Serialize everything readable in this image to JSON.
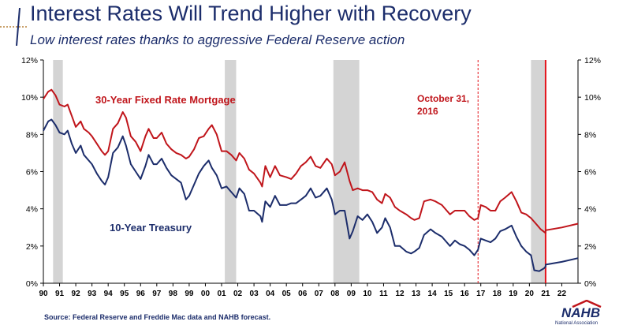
{
  "header": {
    "title": "Interest Rates Will Trend Higher with Recovery",
    "subtitle": "Low interest rates thanks to aggressive Federal Reserve action"
  },
  "footer": {
    "source": "Source: Federal Reserve and Freddie Mac data and NAHB forecast.",
    "logo": "NAHB",
    "logo_sub": "National Association"
  },
  "colors": {
    "mortgage": "#c0151b",
    "treasury": "#1c2d6b",
    "recession": "#d4d4d4",
    "marker": "#e3131b"
  },
  "chart_data": {
    "type": "line",
    "x_tick_labels": [
      "90",
      "91",
      "92",
      "93",
      "94",
      "95",
      "96",
      "97",
      "98",
      "99",
      "00",
      "01",
      "02",
      "03",
      "04",
      "05",
      "06",
      "07",
      "08",
      "09",
      "10",
      "11",
      "12",
      "13",
      "14",
      "15",
      "16",
      "17",
      "18",
      "19",
      "20",
      "21",
      "22"
    ],
    "y_tick_labels": [
      "0%",
      "2%",
      "4%",
      "6%",
      "8%",
      "10%",
      "12%"
    ],
    "ylim": [
      0,
      12
    ],
    "xlim": [
      1990,
      2023
    ],
    "recessions": [
      [
        1990.6,
        1991.2
      ],
      [
        2001.2,
        2001.9
      ],
      [
        2007.9,
        2009.5
      ],
      [
        2020.1,
        2021.0
      ]
    ],
    "annotation": {
      "text_lines": [
        "October 31,",
        "2016"
      ],
      "x": 2016.83
    },
    "forecast_start": 2021.0,
    "series": [
      {
        "name": "30-Year Fixed Rate Mortgage",
        "points": [
          [
            1990.0,
            9.9
          ],
          [
            1990.3,
            10.3
          ],
          [
            1990.5,
            10.4
          ],
          [
            1990.75,
            10.1
          ],
          [
            1991.0,
            9.6
          ],
          [
            1991.3,
            9.5
          ],
          [
            1991.5,
            9.6
          ],
          [
            1991.75,
            9.0
          ],
          [
            1992.0,
            8.4
          ],
          [
            1992.3,
            8.7
          ],
          [
            1992.5,
            8.3
          ],
          [
            1992.8,
            8.1
          ],
          [
            1993.0,
            7.9
          ],
          [
            1993.3,
            7.5
          ],
          [
            1993.6,
            7.1
          ],
          [
            1993.8,
            6.9
          ],
          [
            1994.0,
            7.1
          ],
          [
            1994.3,
            8.3
          ],
          [
            1994.6,
            8.6
          ],
          [
            1994.9,
            9.2
          ],
          [
            1995.1,
            8.9
          ],
          [
            1995.4,
            7.9
          ],
          [
            1995.7,
            7.6
          ],
          [
            1996.0,
            7.1
          ],
          [
            1996.3,
            7.9
          ],
          [
            1996.5,
            8.3
          ],
          [
            1996.8,
            7.8
          ],
          [
            1997.0,
            7.8
          ],
          [
            1997.3,
            8.1
          ],
          [
            1997.6,
            7.5
          ],
          [
            1997.9,
            7.2
          ],
          [
            1998.2,
            7.0
          ],
          [
            1998.5,
            6.9
          ],
          [
            1998.8,
            6.7
          ],
          [
            1999.0,
            6.8
          ],
          [
            1999.3,
            7.2
          ],
          [
            1999.6,
            7.8
          ],
          [
            1999.9,
            7.9
          ],
          [
            2000.2,
            8.3
          ],
          [
            2000.4,
            8.5
          ],
          [
            2000.7,
            8.0
          ],
          [
            2001.0,
            7.1
          ],
          [
            2001.3,
            7.1
          ],
          [
            2001.6,
            6.9
          ],
          [
            2001.9,
            6.6
          ],
          [
            2002.1,
            7.0
          ],
          [
            2002.4,
            6.7
          ],
          [
            2002.7,
            6.1
          ],
          [
            2003.0,
            5.9
          ],
          [
            2003.4,
            5.4
          ],
          [
            2003.5,
            5.2
          ],
          [
            2003.7,
            6.3
          ],
          [
            2004.0,
            5.7
          ],
          [
            2004.3,
            6.3
          ],
          [
            2004.6,
            5.8
          ],
          [
            2005.0,
            5.7
          ],
          [
            2005.3,
            5.6
          ],
          [
            2005.6,
            5.9
          ],
          [
            2005.9,
            6.3
          ],
          [
            2006.2,
            6.5
          ],
          [
            2006.5,
            6.8
          ],
          [
            2006.8,
            6.3
          ],
          [
            2007.1,
            6.2
          ],
          [
            2007.5,
            6.7
          ],
          [
            2007.8,
            6.4
          ],
          [
            2008.0,
            5.8
          ],
          [
            2008.3,
            6.0
          ],
          [
            2008.6,
            6.5
          ],
          [
            2008.9,
            5.5
          ],
          [
            2009.1,
            5.0
          ],
          [
            2009.4,
            5.1
          ],
          [
            2009.7,
            5.0
          ],
          [
            2010.0,
            5.0
          ],
          [
            2010.3,
            4.9
          ],
          [
            2010.6,
            4.5
          ],
          [
            2010.9,
            4.3
          ],
          [
            2011.1,
            4.8
          ],
          [
            2011.4,
            4.6
          ],
          [
            2011.7,
            4.1
          ],
          [
            2012.0,
            3.9
          ],
          [
            2012.4,
            3.7
          ],
          [
            2012.7,
            3.5
          ],
          [
            2012.9,
            3.4
          ],
          [
            2013.2,
            3.5
          ],
          [
            2013.5,
            4.4
          ],
          [
            2013.9,
            4.5
          ],
          [
            2014.2,
            4.4
          ],
          [
            2014.6,
            4.2
          ],
          [
            2014.9,
            3.9
          ],
          [
            2015.1,
            3.7
          ],
          [
            2015.4,
            3.9
          ],
          [
            2015.7,
            3.9
          ],
          [
            2016.0,
            3.9
          ],
          [
            2016.3,
            3.6
          ],
          [
            2016.6,
            3.4
          ],
          [
            2016.83,
            3.5
          ],
          [
            2017.0,
            4.2
          ],
          [
            2017.3,
            4.1
          ],
          [
            2017.6,
            3.9
          ],
          [
            2017.9,
            3.9
          ],
          [
            2018.2,
            4.4
          ],
          [
            2018.5,
            4.6
          ],
          [
            2018.9,
            4.9
          ],
          [
            2019.2,
            4.4
          ],
          [
            2019.5,
            3.8
          ],
          [
            2019.8,
            3.7
          ],
          [
            2020.1,
            3.5
          ],
          [
            2020.4,
            3.2
          ],
          [
            2020.7,
            2.9
          ],
          [
            2021.0,
            2.7
          ],
          [
            2021.01,
            2.85
          ],
          [
            2022.0,
            3.0
          ],
          [
            2023.0,
            3.2
          ]
        ]
      },
      {
        "name": "10-Year Treasury",
        "points": [
          [
            1990.0,
            8.2
          ],
          [
            1990.3,
            8.7
          ],
          [
            1990.5,
            8.8
          ],
          [
            1990.75,
            8.5
          ],
          [
            1991.0,
            8.1
          ],
          [
            1991.3,
            8.0
          ],
          [
            1991.5,
            8.2
          ],
          [
            1991.75,
            7.5
          ],
          [
            1992.0,
            7.0
          ],
          [
            1992.3,
            7.4
          ],
          [
            1992.5,
            6.9
          ],
          [
            1992.8,
            6.6
          ],
          [
            1993.0,
            6.4
          ],
          [
            1993.3,
            5.9
          ],
          [
            1993.6,
            5.5
          ],
          [
            1993.8,
            5.3
          ],
          [
            1994.0,
            5.7
          ],
          [
            1994.3,
            7.0
          ],
          [
            1994.6,
            7.3
          ],
          [
            1994.9,
            7.9
          ],
          [
            1995.1,
            7.4
          ],
          [
            1995.4,
            6.4
          ],
          [
            1995.7,
            6.0
          ],
          [
            1996.0,
            5.6
          ],
          [
            1996.3,
            6.3
          ],
          [
            1996.5,
            6.9
          ],
          [
            1996.8,
            6.4
          ],
          [
            1997.0,
            6.4
          ],
          [
            1997.3,
            6.7
          ],
          [
            1997.6,
            6.2
          ],
          [
            1997.9,
            5.8
          ],
          [
            1998.2,
            5.6
          ],
          [
            1998.5,
            5.4
          ],
          [
            1998.8,
            4.5
          ],
          [
            1999.0,
            4.7
          ],
          [
            1999.3,
            5.3
          ],
          [
            1999.6,
            5.9
          ],
          [
            1999.9,
            6.3
          ],
          [
            2000.2,
            6.6
          ],
          [
            2000.4,
            6.2
          ],
          [
            2000.7,
            5.8
          ],
          [
            2001.0,
            5.1
          ],
          [
            2001.3,
            5.2
          ],
          [
            2001.6,
            4.9
          ],
          [
            2001.9,
            4.6
          ],
          [
            2002.1,
            5.1
          ],
          [
            2002.4,
            4.8
          ],
          [
            2002.7,
            3.9
          ],
          [
            2003.0,
            3.9
          ],
          [
            2003.4,
            3.6
          ],
          [
            2003.5,
            3.3
          ],
          [
            2003.7,
            4.4
          ],
          [
            2004.0,
            4.1
          ],
          [
            2004.3,
            4.7
          ],
          [
            2004.6,
            4.2
          ],
          [
            2005.0,
            4.2
          ],
          [
            2005.3,
            4.3
          ],
          [
            2005.6,
            4.3
          ],
          [
            2005.9,
            4.5
          ],
          [
            2006.2,
            4.7
          ],
          [
            2006.5,
            5.1
          ],
          [
            2006.8,
            4.6
          ],
          [
            2007.1,
            4.7
          ],
          [
            2007.5,
            5.1
          ],
          [
            2007.8,
            4.5
          ],
          [
            2008.0,
            3.7
          ],
          [
            2008.3,
            3.9
          ],
          [
            2008.6,
            3.9
          ],
          [
            2008.9,
            2.4
          ],
          [
            2009.1,
            2.8
          ],
          [
            2009.4,
            3.6
          ],
          [
            2009.7,
            3.4
          ],
          [
            2010.0,
            3.7
          ],
          [
            2010.3,
            3.3
          ],
          [
            2010.6,
            2.7
          ],
          [
            2010.9,
            3.0
          ],
          [
            2011.1,
            3.5
          ],
          [
            2011.4,
            3.0
          ],
          [
            2011.7,
            2.0
          ],
          [
            2012.0,
            2.0
          ],
          [
            2012.4,
            1.7
          ],
          [
            2012.7,
            1.6
          ],
          [
            2012.9,
            1.7
          ],
          [
            2013.2,
            1.9
          ],
          [
            2013.5,
            2.6
          ],
          [
            2013.9,
            2.9
          ],
          [
            2014.2,
            2.7
          ],
          [
            2014.6,
            2.5
          ],
          [
            2014.9,
            2.2
          ],
          [
            2015.1,
            2.0
          ],
          [
            2015.4,
            2.3
          ],
          [
            2015.7,
            2.1
          ],
          [
            2016.0,
            2.0
          ],
          [
            2016.3,
            1.8
          ],
          [
            2016.6,
            1.5
          ],
          [
            2016.83,
            1.8
          ],
          [
            2017.0,
            2.4
          ],
          [
            2017.3,
            2.3
          ],
          [
            2017.6,
            2.2
          ],
          [
            2017.9,
            2.4
          ],
          [
            2018.2,
            2.8
          ],
          [
            2018.5,
            2.9
          ],
          [
            2018.9,
            3.1
          ],
          [
            2019.2,
            2.5
          ],
          [
            2019.5,
            2.0
          ],
          [
            2019.8,
            1.7
          ],
          [
            2020.1,
            1.5
          ],
          [
            2020.3,
            0.7
          ],
          [
            2020.6,
            0.65
          ],
          [
            2020.9,
            0.8
          ],
          [
            2021.0,
            0.9
          ],
          [
            2021.01,
            1.0
          ],
          [
            2022.0,
            1.15
          ],
          [
            2023.0,
            1.35
          ]
        ]
      }
    ],
    "labels": {
      "mortgage": "30-Year Fixed Rate Mortgage",
      "treasury": "10-Year Treasury"
    }
  }
}
